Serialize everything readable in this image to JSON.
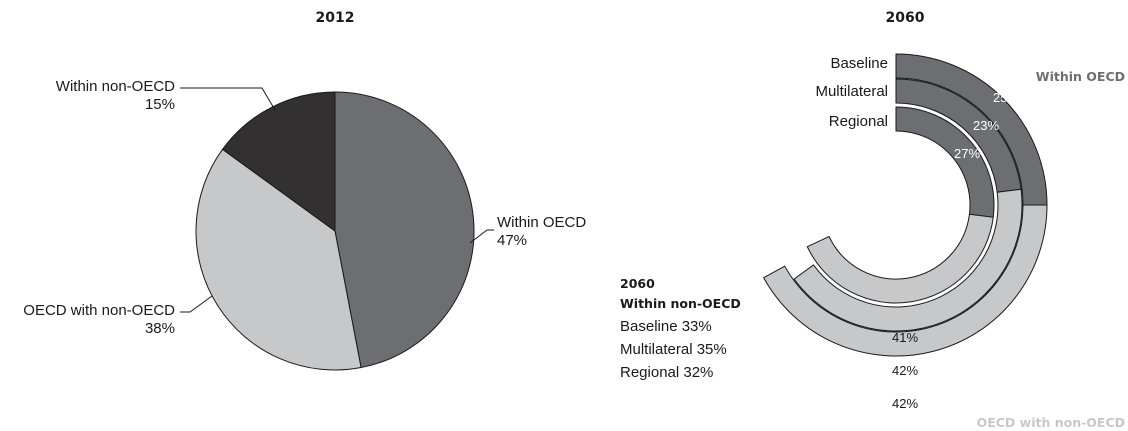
{
  "chart_data": [
    {
      "type": "pie",
      "title": "2012",
      "slices": [
        {
          "label": "Within OECD",
          "value": 47,
          "value_label": "47%",
          "color": "#6d6e71"
        },
        {
          "label": "OECD with non-OECD",
          "value": 38,
          "value_label": "38%",
          "color": "#c7c8ca"
        },
        {
          "label": "Within non-OECD",
          "value": 15,
          "value_label": "15%",
          "color": "#323031"
        }
      ]
    },
    {
      "type": "donut",
      "title": "2060",
      "rings": [
        {
          "name": "Baseline",
          "values": {
            "within_oecd": 25,
            "oecd_with_non_oecd": 42,
            "within_non_oecd": 33
          },
          "oecd_label": "25%",
          "cross_label": "42%",
          "non_label": "Baseline 33%"
        },
        {
          "name": "Multilateral",
          "values": {
            "within_oecd": 23,
            "oecd_with_non_oecd": 42,
            "within_non_oecd": 35
          },
          "oecd_label": "23%",
          "cross_label": "42%",
          "non_label": "Multilateral 35%"
        },
        {
          "name": "Regional",
          "values": {
            "within_oecd": 27,
            "oecd_with_non_oecd": 41,
            "within_non_oecd": 32
          },
          "oecd_label": "27%",
          "cross_label": "41%",
          "non_label": "Regional 32%"
        }
      ],
      "category_labels": {
        "within_oecd": "Within OECD",
        "oecd_with_non_oecd": "OECD with non-OECD"
      },
      "non_oecd_caption": {
        "year": "2060",
        "title": "Within non-OECD"
      },
      "colors": {
        "within_oecd": "#6d6e71",
        "oecd_with_non_oecd": "#c7c8ca",
        "stroke": "#1a1a1a"
      }
    }
  ]
}
